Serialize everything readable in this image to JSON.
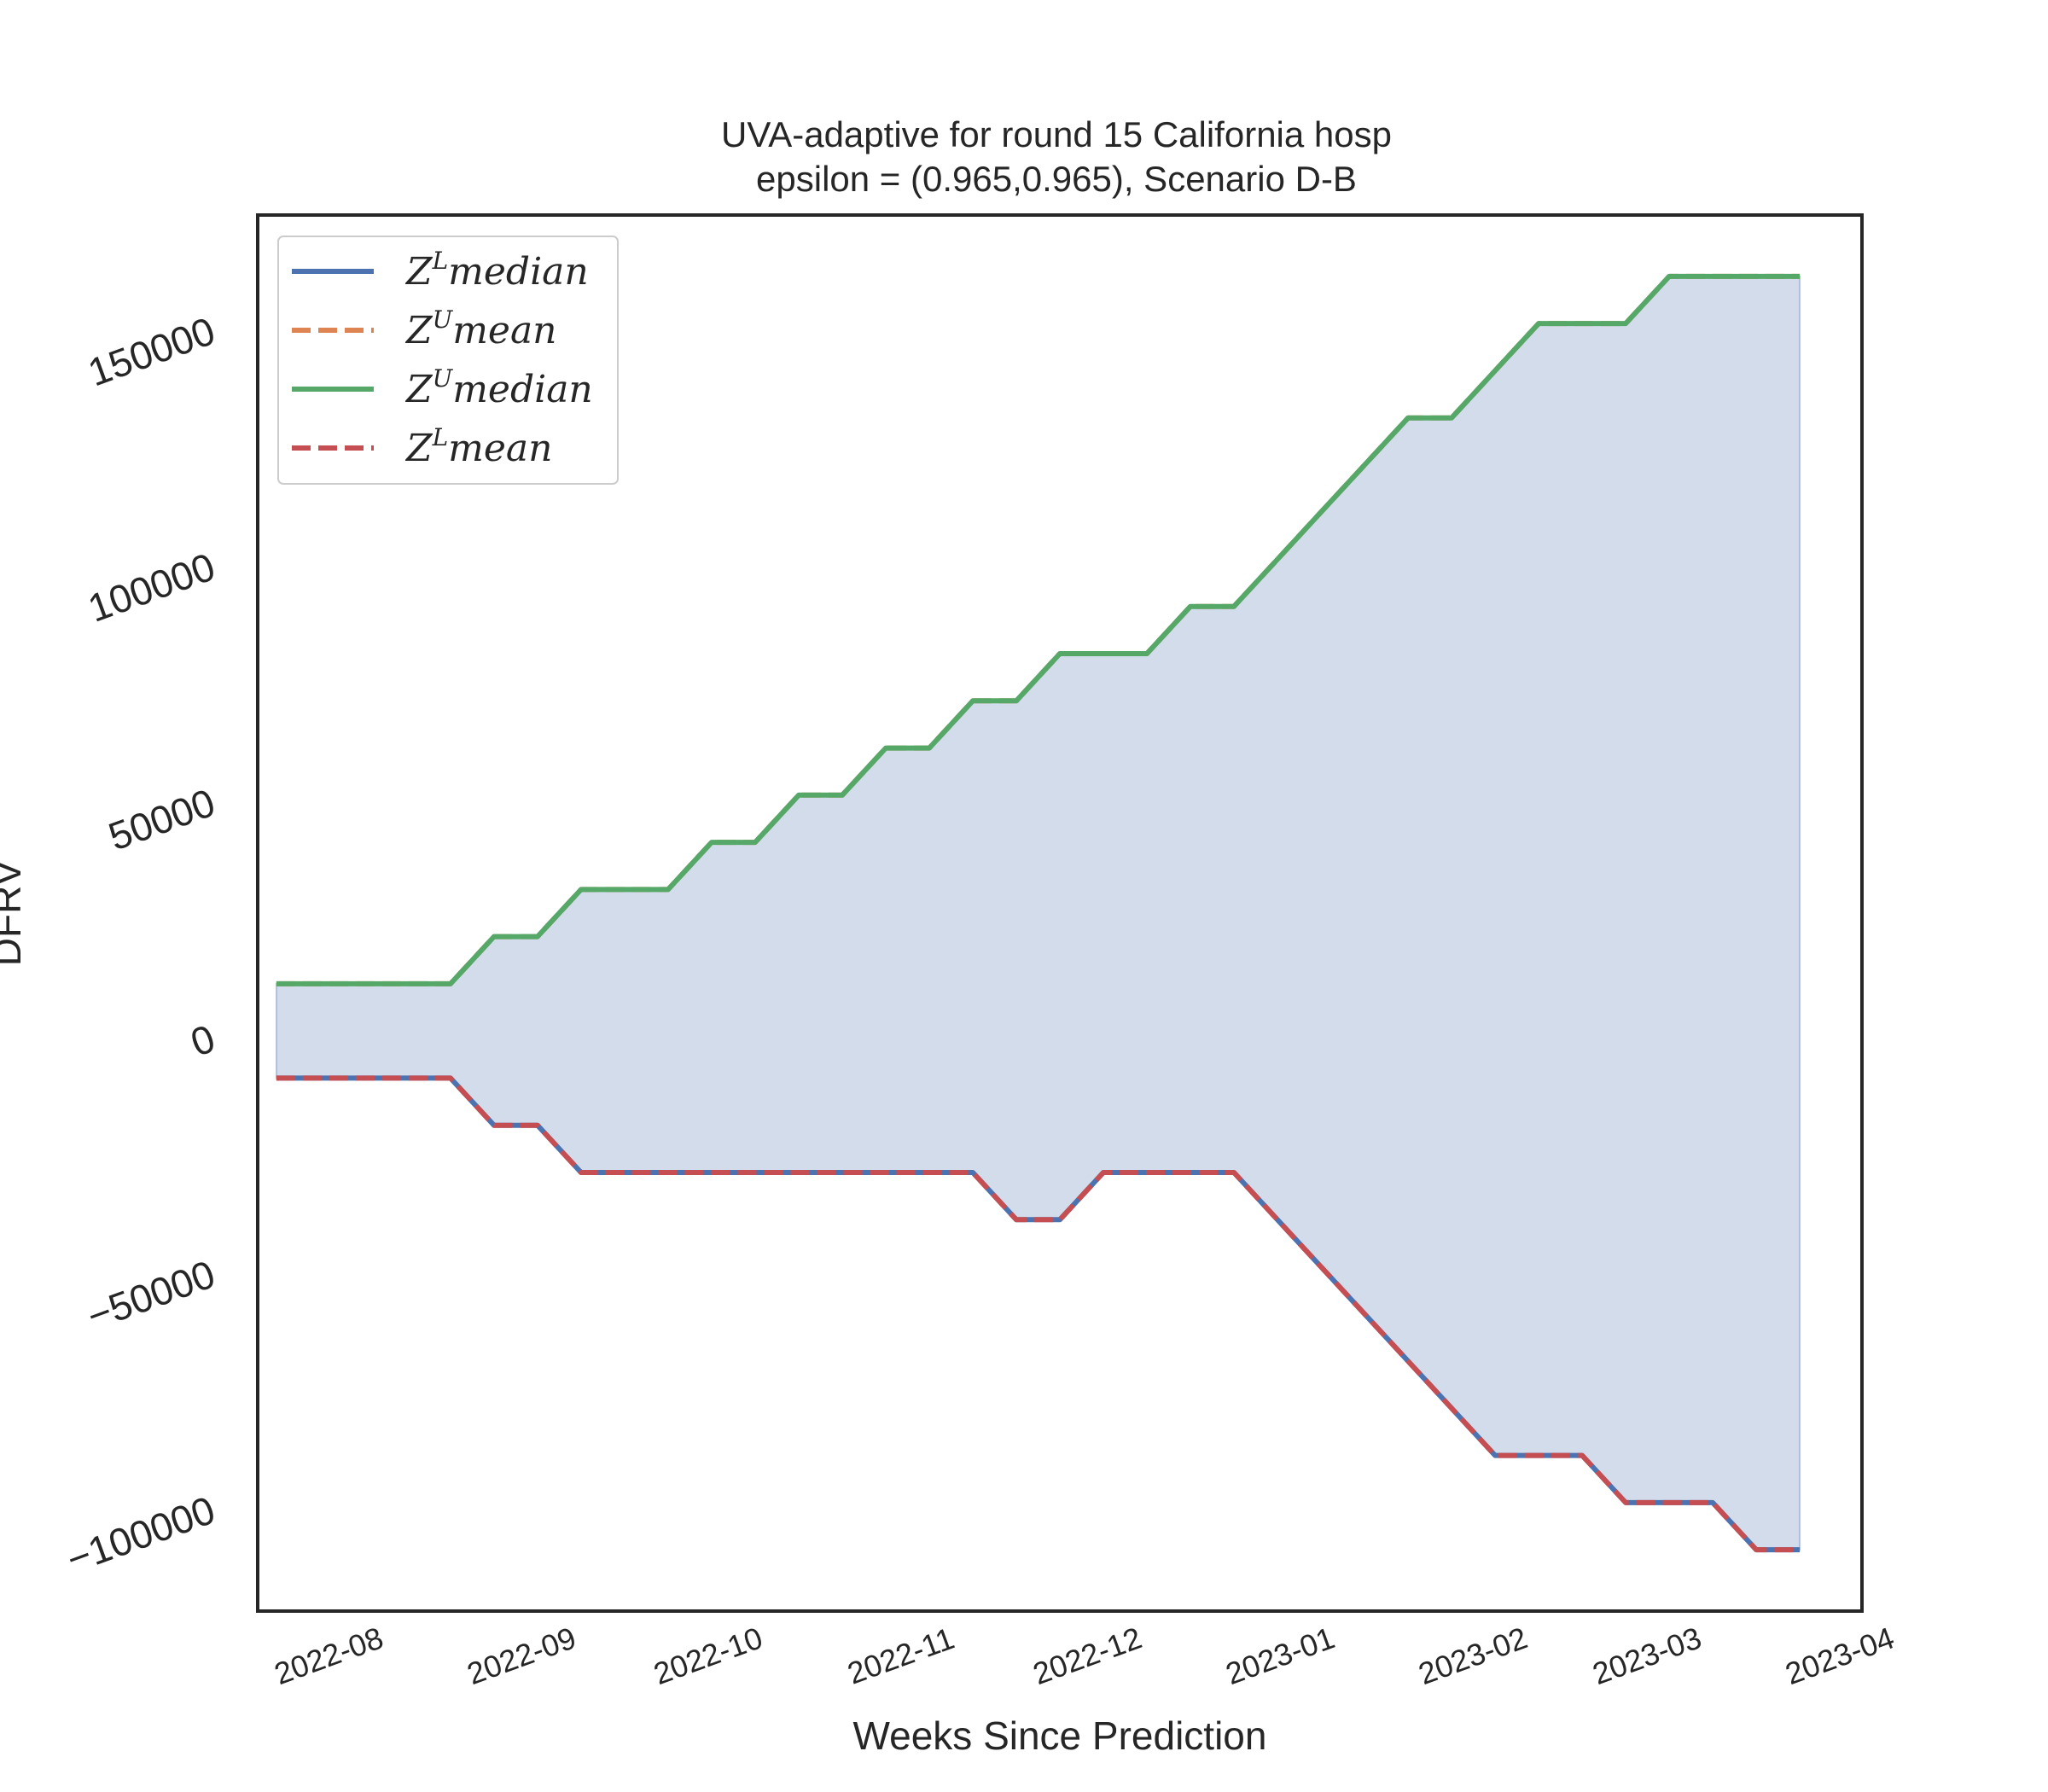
{
  "chart_data": {
    "type": "line",
    "title": "UVA-adaptive for round 15 California  hosp",
    "subtitle": "epsilon = (0.965,0.965), Scenario D-B",
    "xlabel": "Weeks Since Prediction",
    "ylabel": "DFRV",
    "x_ticks": [
      "2022-08",
      "2022-09",
      "2022-10",
      "2022-11",
      "2022-12",
      "2023-01",
      "2023-02",
      "2023-03",
      "2023-04"
    ],
    "x_range": [
      "2022-07-20",
      "2023-04-04"
    ],
    "y_ticks": [
      -100000,
      -50000,
      0,
      50000,
      100000,
      150000
    ],
    "y_tick_labels": [
      "−100000",
      "−50000",
      "0",
      "50000",
      "100000",
      "150000"
    ],
    "ylim": [
      -122000,
      174000
    ],
    "grid": false,
    "legend_position": "upper-left",
    "x": [
      "2022-07-23",
      "2022-07-30",
      "2022-08-06",
      "2022-08-13",
      "2022-08-20",
      "2022-08-27",
      "2022-09-03",
      "2022-09-10",
      "2022-09-17",
      "2022-09-24",
      "2022-10-01",
      "2022-10-08",
      "2022-10-15",
      "2022-10-22",
      "2022-10-29",
      "2022-11-05",
      "2022-11-12",
      "2022-11-19",
      "2022-11-26",
      "2022-12-03",
      "2022-12-10",
      "2022-12-17",
      "2022-12-24",
      "2022-12-31",
      "2023-01-07",
      "2023-01-14",
      "2023-01-21",
      "2023-01-28",
      "2023-02-04",
      "2023-02-11",
      "2023-02-18",
      "2023-02-25",
      "2023-03-04",
      "2023-03-11",
      "2023-03-18",
      "2023-03-25"
    ],
    "series": [
      {
        "name": "Z^L median",
        "legend_base": "Z",
        "legend_sup": "L",
        "legend_rest": "median",
        "color": "#4c72b0",
        "style": "solid",
        "values": [
          -9000,
          -9000,
          -9000,
          -9000,
          -9000,
          -19000,
          -19000,
          -29000,
          -29000,
          -29000,
          -29000,
          -29000,
          -29000,
          -29000,
          -29000,
          -29000,
          -29000,
          -39000,
          -39000,
          -29000,
          -29000,
          -29000,
          -29000,
          -39000,
          -49000,
          -59000,
          -69000,
          -79000,
          -89000,
          -89000,
          -89000,
          -99000,
          -99000,
          -99000,
          -109000,
          -109000
        ]
      },
      {
        "name": "Z^U mean",
        "legend_base": "Z",
        "legend_sup": "U",
        "legend_rest": "mean",
        "color": "#dd8452",
        "style": "dashed",
        "values": [
          11000,
          11000,
          11000,
          11000,
          11000,
          21000,
          21000,
          31000,
          31000,
          31000,
          41000,
          41000,
          51000,
          51000,
          61000,
          61000,
          71000,
          71000,
          81000,
          81000,
          81000,
          91000,
          91000,
          101000,
          111000,
          121000,
          131000,
          131000,
          141000,
          151000,
          151000,
          151000,
          161000,
          161000,
          161000,
          161000
        ]
      },
      {
        "name": "Z^U median",
        "legend_base": "Z",
        "legend_sup": "U",
        "legend_rest": "median",
        "color": "#55a868",
        "style": "solid",
        "values": [
          11000,
          11000,
          11000,
          11000,
          11000,
          21000,
          21000,
          31000,
          31000,
          31000,
          41000,
          41000,
          51000,
          51000,
          61000,
          61000,
          71000,
          71000,
          81000,
          81000,
          81000,
          91000,
          91000,
          101000,
          111000,
          121000,
          131000,
          131000,
          141000,
          151000,
          151000,
          151000,
          161000,
          161000,
          161000,
          161000
        ]
      },
      {
        "name": "Z^L mean",
        "legend_base": "Z",
        "legend_sup": "L",
        "legend_rest": "mean",
        "color": "#c44e52",
        "style": "dashed",
        "values": [
          -9000,
          -9000,
          -9000,
          -9000,
          -9000,
          -19000,
          -19000,
          -29000,
          -29000,
          -29000,
          -29000,
          -29000,
          -29000,
          -29000,
          -29000,
          -29000,
          -29000,
          -39000,
          -39000,
          -29000,
          -29000,
          -29000,
          -29000,
          -39000,
          -49000,
          -59000,
          -69000,
          -79000,
          -89000,
          -89000,
          -89000,
          -99000,
          -99000,
          -99000,
          -109000,
          -109000
        ]
      }
    ],
    "fill_between": {
      "lower_series": "Z^L median",
      "upper_series": "Z^U median",
      "color": "#4c72b0",
      "opacity": 0.25
    }
  }
}
